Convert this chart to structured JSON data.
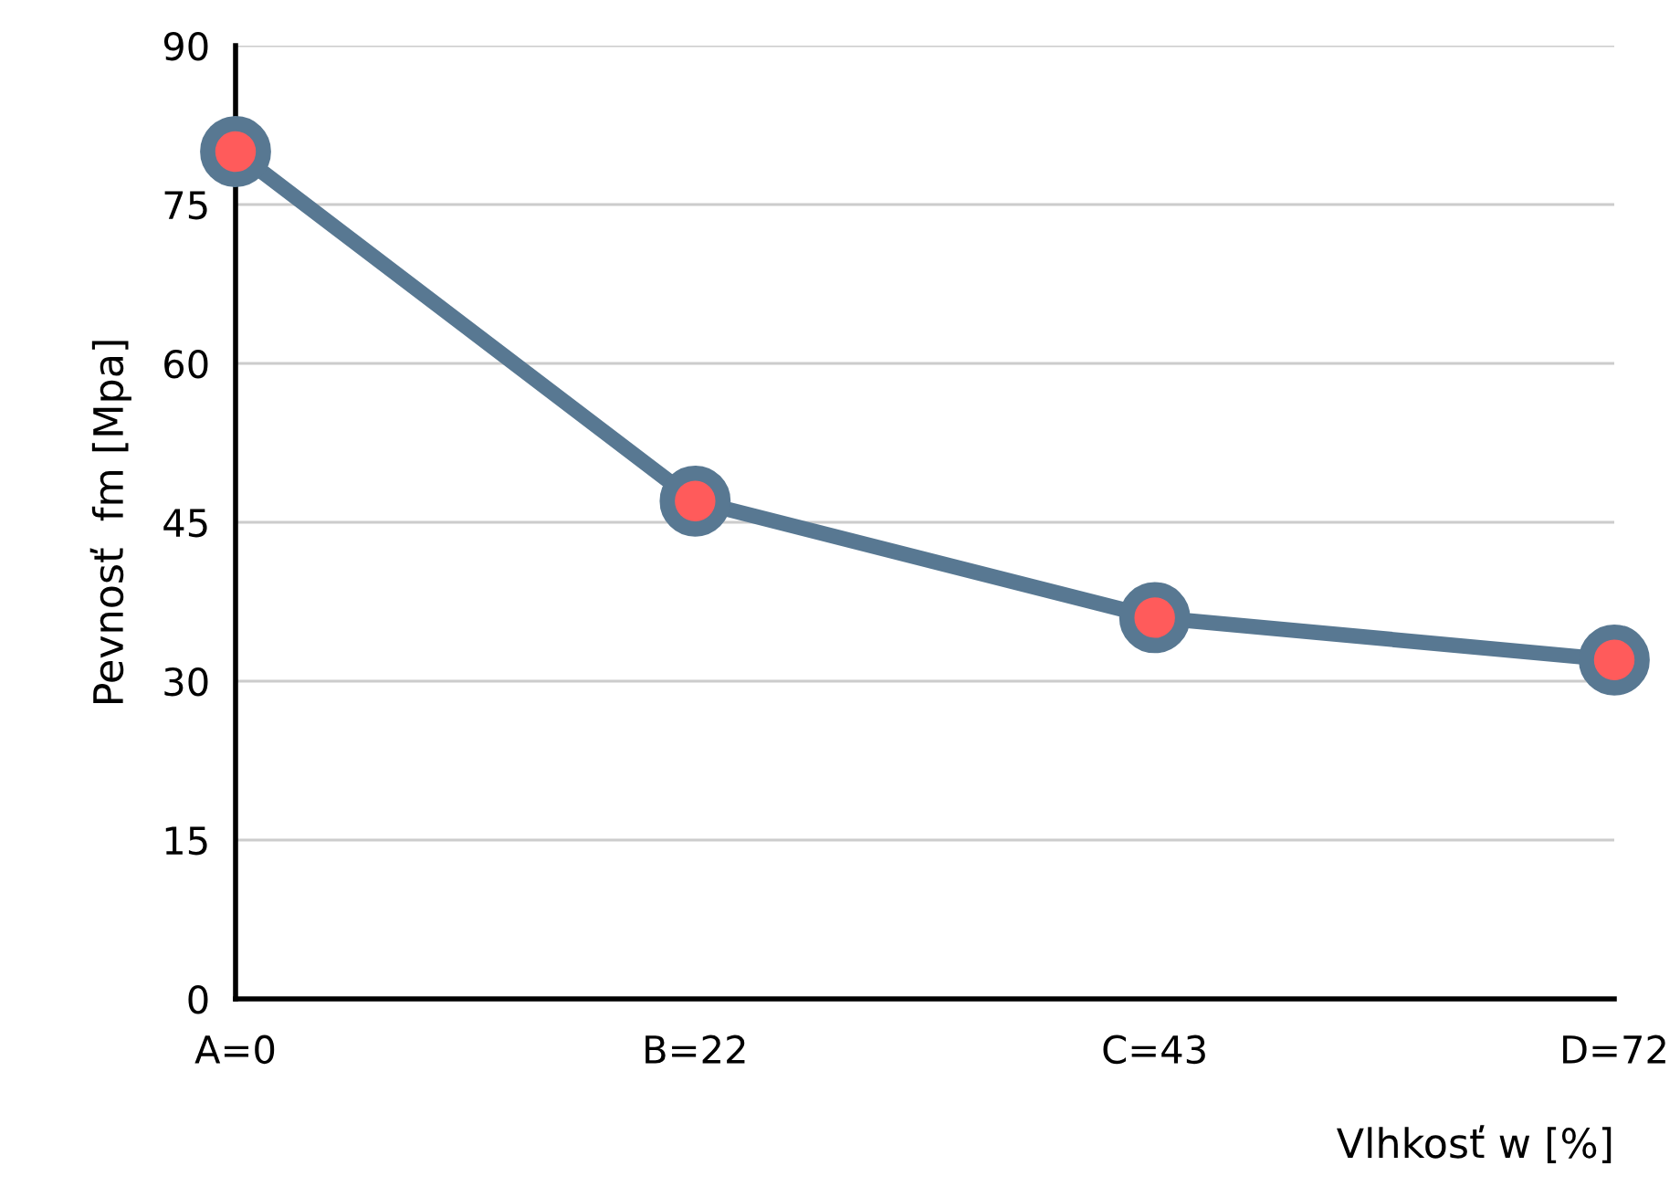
{
  "chart_data": {
    "type": "line",
    "xlabel": "Vlhkosť w [%]",
    "ylabel": "Pevnosť  fm [Mpa]",
    "categories": [
      "A=0",
      "B=22",
      "C=43",
      "D=72"
    ],
    "series": [
      {
        "color": "#587892",
        "colors": [
          "#ff5b5b",
          "#ff5b5b",
          "#ff5b5b",
          "#ff5b5b"
        ],
        "values": [
          80,
          47,
          36,
          32
        ]
      }
    ],
    "ylim": [
      0,
      90
    ],
    "yticks": [
      0,
      15,
      30,
      45,
      60,
      75,
      90
    ],
    "grid": "y",
    "marker": "circle",
    "line_style": "solid"
  }
}
